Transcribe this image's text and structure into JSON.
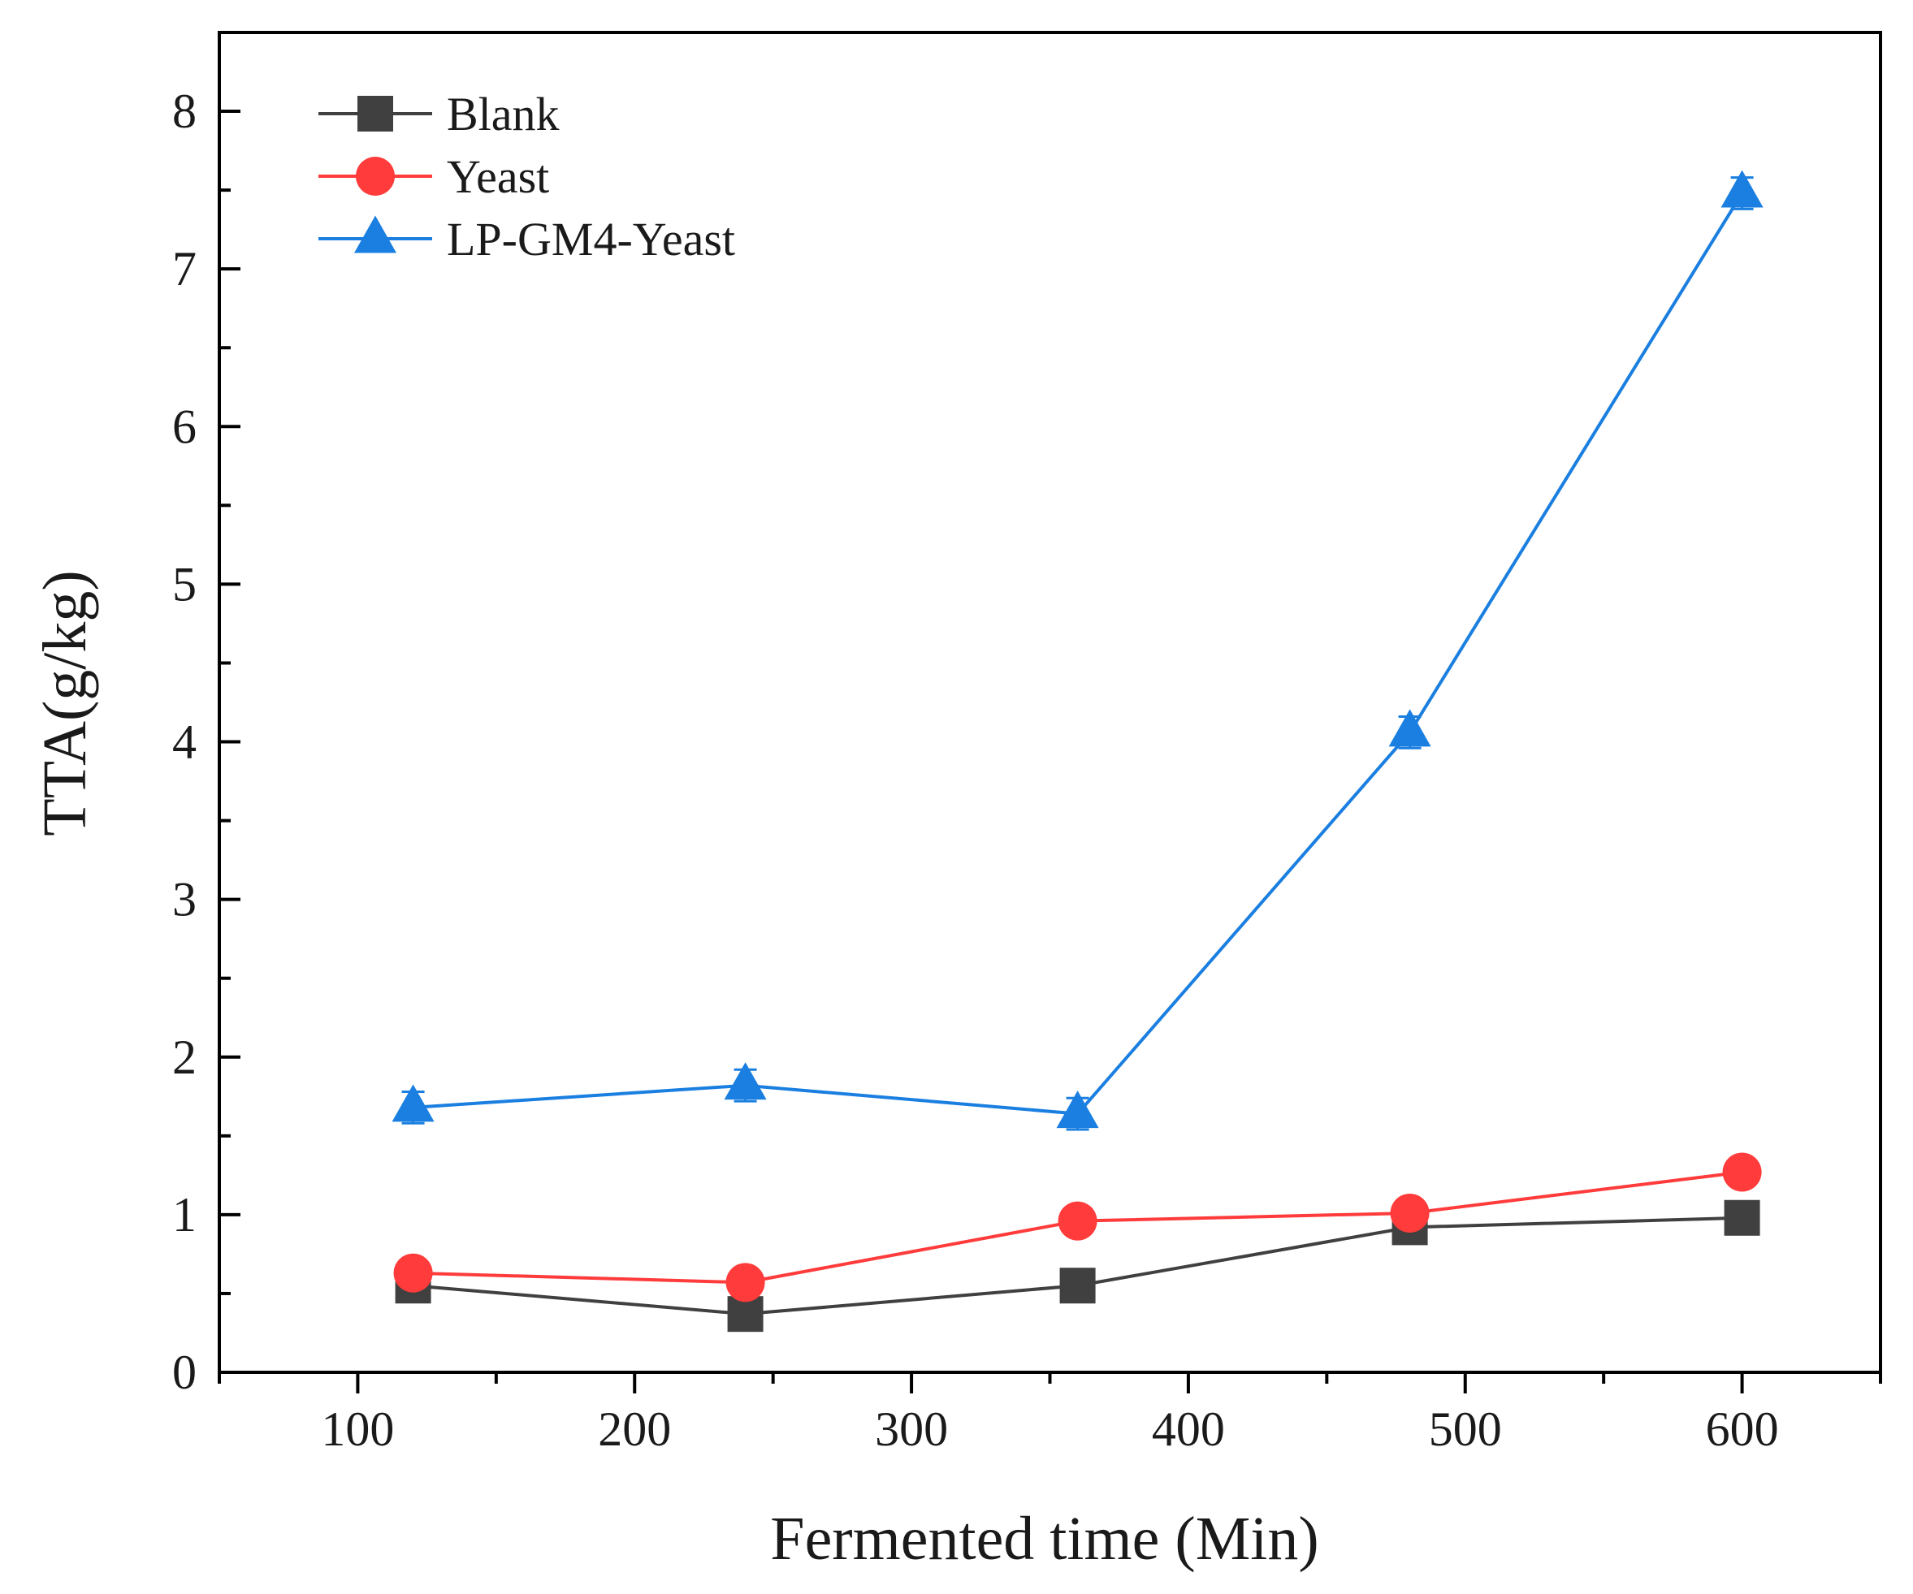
{
  "chart_data": {
    "type": "line",
    "title": "",
    "xlabel": "Fermented time (Min)",
    "ylabel": "TTA(g/kg)",
    "xlim": [
      50,
      650
    ],
    "ylim": [
      0,
      8.5
    ],
    "x_ticks": [
      100,
      200,
      300,
      400,
      500,
      600
    ],
    "x_tick_labels": [
      "100",
      "200",
      "300",
      "400",
      "500",
      "600"
    ],
    "y_ticks": [
      0,
      1,
      2,
      3,
      4,
      5,
      6,
      7,
      8
    ],
    "y_tick_labels": [
      "0",
      "1",
      "2",
      "3",
      "4",
      "5",
      "6",
      "7",
      "8"
    ],
    "grid": false,
    "legend_position": "top-left",
    "x": [
      120,
      240,
      360,
      480,
      600
    ],
    "series": [
      {
        "name": "Blank",
        "color": "#404040",
        "marker": "square",
        "values": [
          0.55,
          0.37,
          0.55,
          0.92,
          0.98
        ],
        "errors": [
          0.03,
          0.03,
          0.08,
          0.04,
          0.04
        ]
      },
      {
        "name": "Yeast",
        "color": "#ff3b3b",
        "marker": "circle",
        "values": [
          0.63,
          0.57,
          0.96,
          1.01,
          1.27
        ],
        "errors": [
          0.06,
          0.07,
          0.08,
          0.07,
          0.07
        ]
      },
      {
        "name": "LP-GM4-Yeast",
        "color": "#1a7fe0",
        "marker": "triangle",
        "values": [
          1.68,
          1.82,
          1.64,
          4.06,
          7.48
        ],
        "errors": [
          0.1,
          0.1,
          0.1,
          0.1,
          0.1
        ]
      }
    ]
  }
}
